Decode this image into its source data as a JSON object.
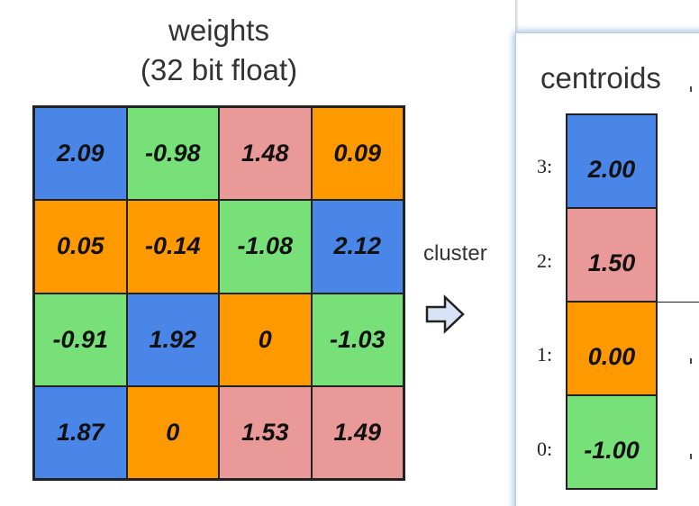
{
  "weights_title_line1": "weights",
  "weights_title_line2": "(32 bit float)",
  "weights": [
    [
      {
        "value": "2.09",
        "color": "#4a86e8"
      },
      {
        "value": "-0.98",
        "color": "#78e078"
      },
      {
        "value": "1.48",
        "color": "#ea9999"
      },
      {
        "value": "0.09",
        "color": "#ff9900"
      }
    ],
    [
      {
        "value": "0.05",
        "color": "#ff9900"
      },
      {
        "value": "-0.14",
        "color": "#ff9900"
      },
      {
        "value": "-1.08",
        "color": "#78e078"
      },
      {
        "value": "2.12",
        "color": "#4a86e8"
      }
    ],
    [
      {
        "value": "-0.91",
        "color": "#78e078"
      },
      {
        "value": "1.92",
        "color": "#4a86e8"
      },
      {
        "value": "0",
        "color": "#ff9900"
      },
      {
        "value": "-1.03",
        "color": "#78e078"
      }
    ],
    [
      {
        "value": "1.87",
        "color": "#4a86e8"
      },
      {
        "value": "0",
        "color": "#ff9900"
      },
      {
        "value": "1.53",
        "color": "#ea9999"
      },
      {
        "value": "1.49",
        "color": "#ea9999"
      }
    ]
  ],
  "cluster_label": "cluster",
  "arrow_icon": "right-arrow-icon",
  "centroids_title": "centroids",
  "centroids": [
    {
      "index": "3:",
      "value": "2.00",
      "color": "#4a86e8"
    },
    {
      "index": "2:",
      "value": "1.50",
      "color": "#ea9999"
    },
    {
      "index": "1:",
      "value": "0.00",
      "color": "#ff9900"
    },
    {
      "index": "0:",
      "value": "-1.00",
      "color": "#78e078"
    }
  ]
}
